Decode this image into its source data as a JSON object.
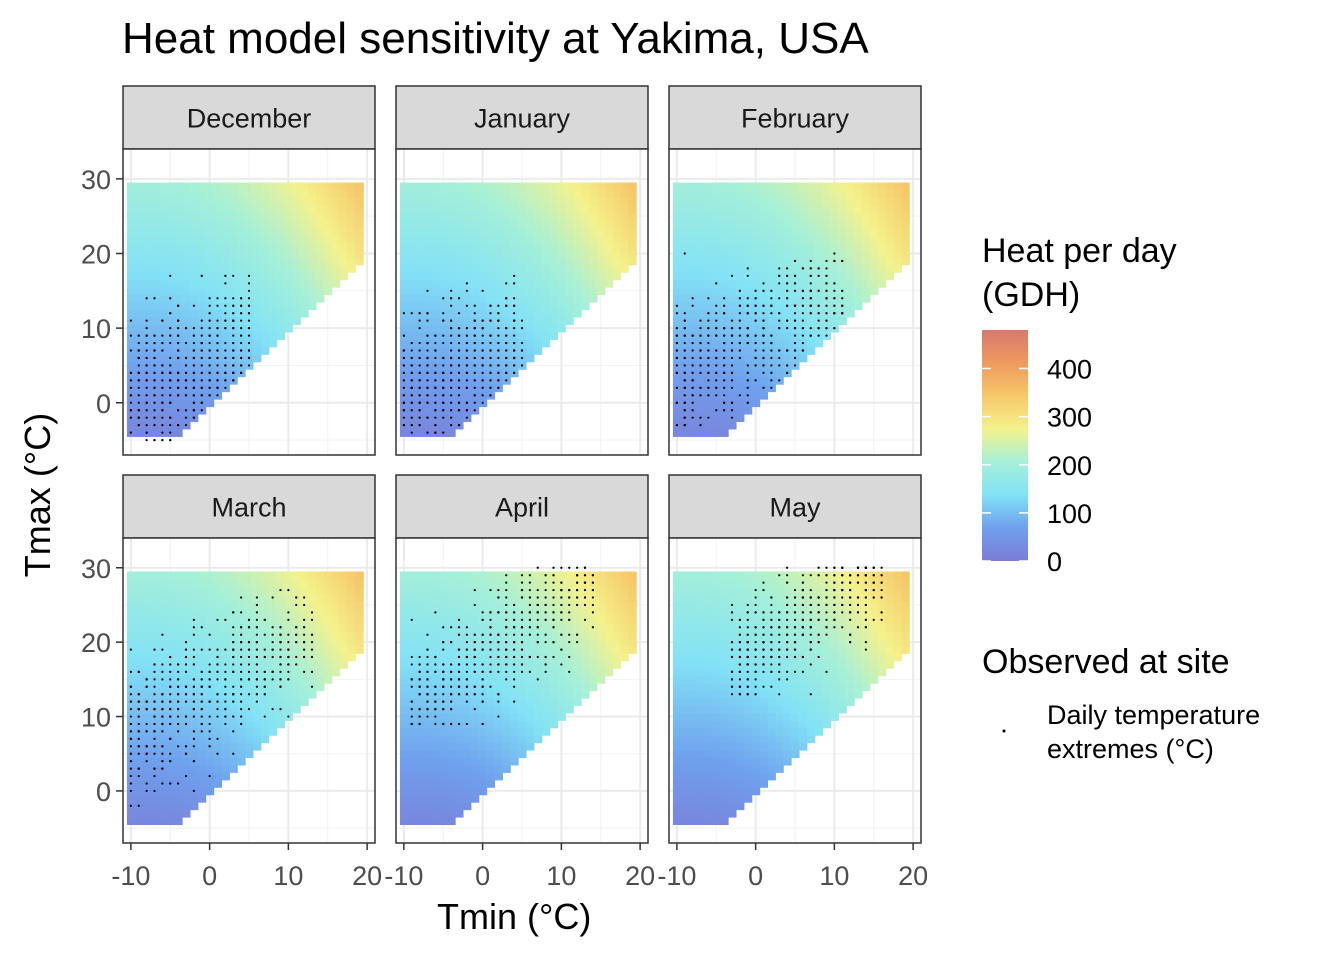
{
  "title": "Heat model sensitivity at Yakima, USA",
  "chart_data": {
    "type": "heatmap",
    "title": "Heat model sensitivity at Yakima, USA",
    "xlabel": "Tmin (°C)",
    "ylabel": "Tmax (°C)",
    "xlim": [
      -11,
      21
    ],
    "ylim": [
      -7,
      34
    ],
    "x_ticks": [
      -10,
      0,
      10,
      20
    ],
    "x_tick_labels": [
      "-10",
      "0",
      "10",
      "20"
    ],
    "y_ticks": [
      0,
      10,
      20,
      30
    ],
    "y_tick_labels": [
      "0",
      "10",
      "20",
      "30"
    ],
    "grid": true,
    "heat_surface": {
      "tmin_range": [
        -10,
        19
      ],
      "tmax_range": [
        -4,
        29
      ],
      "constraint": "Tmax >= Tmin",
      "max_value": 480,
      "reference_values": [
        {
          "tmin": 0,
          "tmax": 5,
          "gdh": 20
        },
        {
          "tmin": -10,
          "tmax": 30,
          "gdh": 170
        },
        {
          "tmin": 10,
          "tmax": 28,
          "gdh": 300
        },
        {
          "tmin": 19,
          "tmax": 24,
          "gdh": 470
        },
        {
          "tmin": 10,
          "tmax": 12,
          "gdh": 150
        }
      ]
    },
    "color_scale": {
      "title_lines": [
        "Heat per day",
        "(GDH)"
      ],
      "limits": [
        0,
        480
      ],
      "breaks": [
        0,
        100,
        200,
        300,
        400
      ],
      "break_labels": [
        "0",
        "100",
        "200",
        "300",
        "400"
      ],
      "colors": [
        "#7c7cd6",
        "#6fa0ee",
        "#82e2f6",
        "#a6f0d8",
        "#f4f28c",
        "#f6c869",
        "#ef9a5e",
        "#d8786e"
      ]
    },
    "panels": [
      {
        "month": "December",
        "points": {
          "tmin_range": [
            -10,
            5
          ],
          "tmax_center": 5,
          "tmax_spread": 4.5,
          "slope": 0.35,
          "tmax_min": -5,
          "tmax_max": 17,
          "count": 560
        }
      },
      {
        "month": "January",
        "points": {
          "tmin_range": [
            -10,
            5
          ],
          "tmax_center": 5,
          "tmax_spread": 4.5,
          "slope": 0.35,
          "tmax_min": -4,
          "tmax_max": 17,
          "count": 560
        }
      },
      {
        "month": "February",
        "points": {
          "tmin_range": [
            -10,
            11
          ],
          "tmax_center": 9.5,
          "tmax_spread": 4.5,
          "slope": 0.5,
          "tmax_min": -4,
          "tmax_max": 20,
          "count": 580
        }
      },
      {
        "month": "March",
        "points": {
          "tmin_range": [
            -10,
            13
          ],
          "tmax_center": 14.5,
          "tmax_spread": 4.5,
          "slope": 0.6,
          "tmax_min": -2,
          "tmax_max": 27,
          "count": 600
        }
      },
      {
        "month": "April",
        "points": {
          "tmin_range": [
            -9,
            14
          ],
          "tmax_center": 20,
          "tmax_spread": 4,
          "slope": 0.75,
          "tmax_min": 9,
          "tmax_max": 30,
          "count": 620
        }
      },
      {
        "month": "May",
        "points": {
          "tmin_range": [
            -3,
            16
          ],
          "tmax_center": 23.5,
          "tmax_spread": 3.5,
          "slope": 0.7,
          "tmax_min": 13,
          "tmax_max": 30,
          "count": 640
        }
      }
    ],
    "legend": {
      "heat_title_lines": [
        "Heat per day",
        "(GDH)"
      ],
      "observed_title": "Observed at site",
      "observed_label_lines": [
        "Daily temperature",
        "extremes (°C)"
      ]
    }
  }
}
